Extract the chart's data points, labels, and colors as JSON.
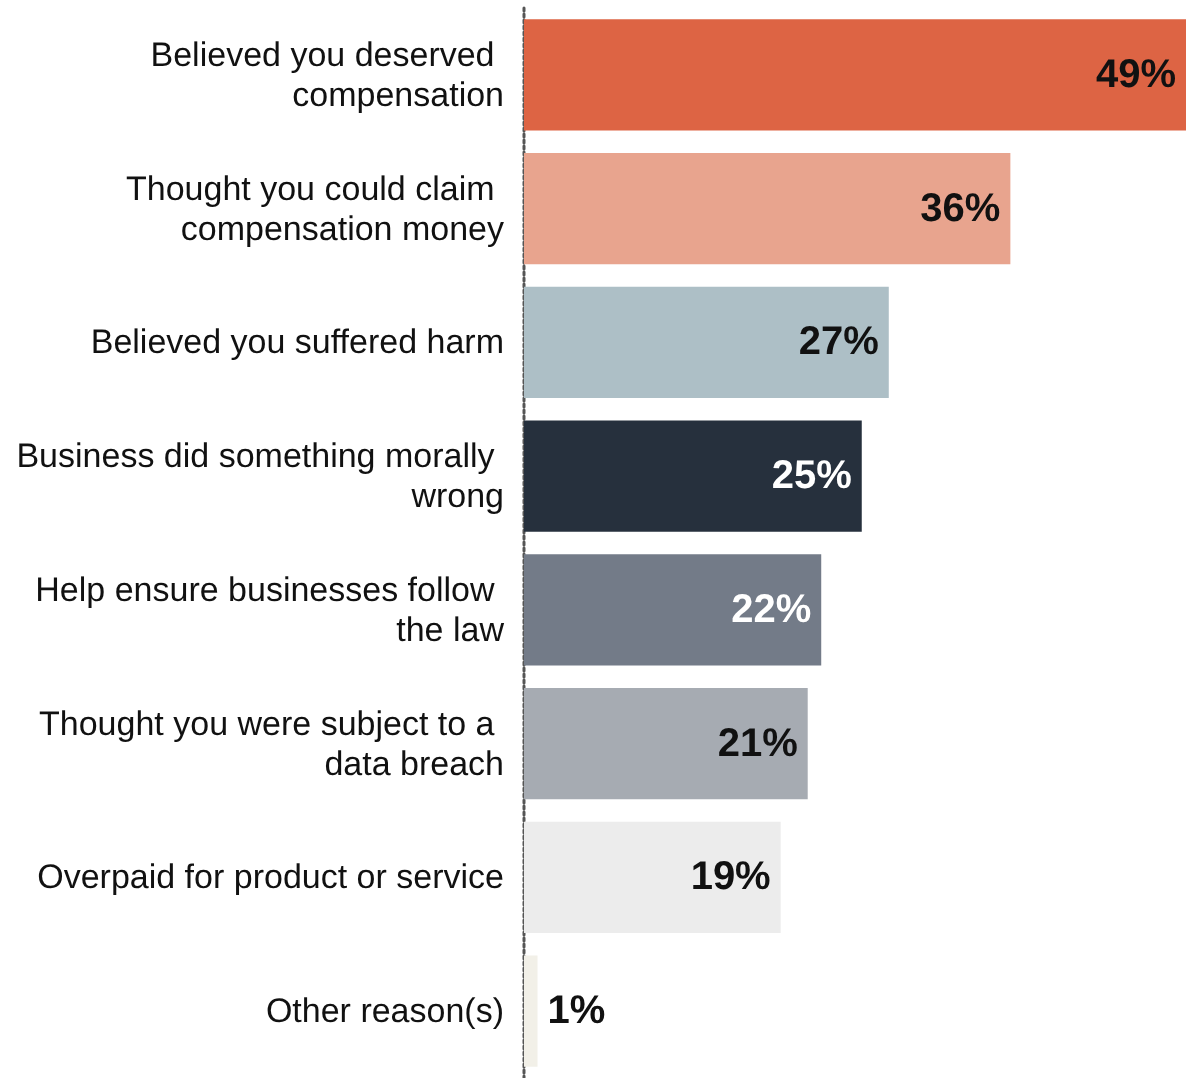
{
  "chart_data": {
    "type": "bar",
    "orientation": "horizontal",
    "categories": [
      "Believed you deserved compensation",
      "Thought you could claim compensation money",
      "Believed you suffered harm",
      "Business did something morally wrong",
      "Help ensure businesses follow the law",
      "Thought you were subject to a data breach",
      "Overpaid for product or service",
      "Other reason(s)"
    ],
    "values": [
      49,
      36,
      27,
      25,
      22,
      21,
      19,
      1
    ],
    "value_labels": [
      "49%",
      "36%",
      "27%",
      "25%",
      "22%",
      "21%",
      "19%",
      "1%"
    ],
    "colors": [
      "#dd6444",
      "#e8a48e",
      "#adbfc6",
      "#26303d",
      "#737b88",
      "#a6abb2",
      "#ececec",
      "#f2f0e8"
    ],
    "xlim": [
      0,
      49
    ]
  }
}
